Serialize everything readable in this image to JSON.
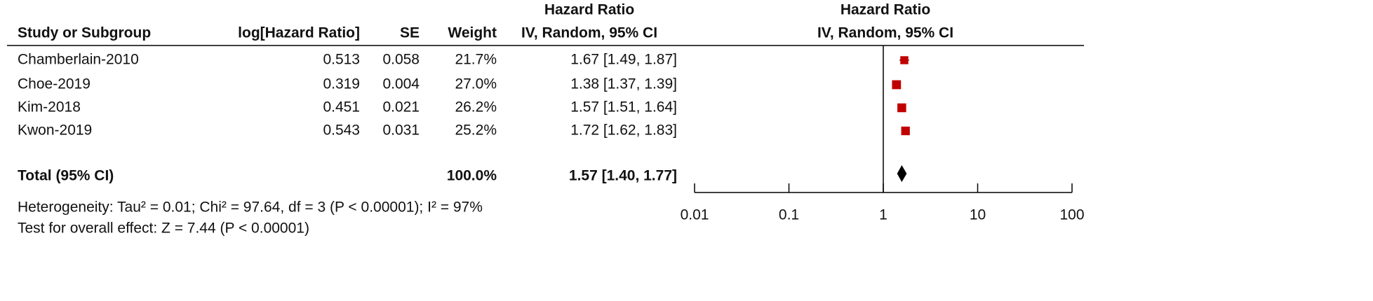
{
  "chart_data": {
    "type": "forest",
    "headers": {
      "study": "Study or Subgroup",
      "log_hr": "log[Hazard Ratio]",
      "se": "SE",
      "weight": "Weight",
      "effect_title": "Hazard Ratio",
      "effect_method": "IV, Random, 95% CI"
    },
    "studies": {
      "names": [
        "Chamberlain-2010",
        "Choe-2019",
        "Kim-2018",
        "Kwon-2019"
      ],
      "log_hr": [
        0.513,
        0.319,
        0.451,
        0.543
      ],
      "se": [
        0.058,
        0.004,
        0.021,
        0.031
      ],
      "weights": [
        21.7,
        27.0,
        26.2,
        25.2
      ],
      "weight_labels": [
        "21.7%",
        "27.0%",
        "26.2%",
        "25.2%"
      ],
      "hr": [
        1.67,
        1.38,
        1.57,
        1.72
      ],
      "ci_low": [
        1.49,
        1.37,
        1.51,
        1.62
      ],
      "ci_high": [
        1.87,
        1.39,
        1.64,
        1.83
      ],
      "hr_labels": [
        "1.67 [1.49, 1.87]",
        "1.38 [1.37, 1.39]",
        "1.57 [1.51, 1.64]",
        "1.72 [1.62, 1.83]"
      ],
      "color": "#c00000"
    },
    "total": {
      "name": "Total (95% CI)",
      "weight": 100,
      "weight_label": "100.0%",
      "hr": 1.57,
      "ci_low": 1.4,
      "ci_high": 1.77,
      "hr_label": "1.57 [1.40, 1.77]",
      "color": "#000000"
    },
    "heterogeneity": "Heterogeneity: Tau² = 0.01; Chi² = 97.64, df = 3 (P < 0.00001); I² = 97%",
    "overall_effect": "Test for overall effect: Z = 7.44 (P < 0.00001)",
    "xscale": "log",
    "xlim": [
      0.01,
      100
    ],
    "xticks": [
      0.01,
      0.1,
      1,
      10,
      100
    ],
    "reference": 1
  }
}
